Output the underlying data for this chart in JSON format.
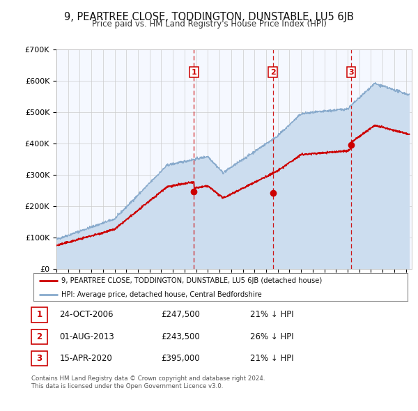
{
  "title": "9, PEARTREE CLOSE, TODDINGTON, DUNSTABLE, LU5 6JB",
  "subtitle": "Price paid vs. HM Land Registry's House Price Index (HPI)",
  "legend_label_red": "9, PEARTREE CLOSE, TODDINGTON, DUNSTABLE, LU5 6JB (detached house)",
  "legend_label_blue": "HPI: Average price, detached house, Central Bedfordshire",
  "footer_line1": "Contains HM Land Registry data © Crown copyright and database right 2024.",
  "footer_line2": "This data is licensed under the Open Government Licence v3.0.",
  "sales": [
    {
      "num": 1,
      "date_str": "24-OCT-2006",
      "date_x": 2006.81,
      "price": 247500,
      "pct": "21%",
      "dir": "↓"
    },
    {
      "num": 2,
      "date_str": "01-AUG-2013",
      "date_x": 2013.58,
      "price": 243500,
      "pct": "26%",
      "dir": "↓"
    },
    {
      "num": 3,
      "date_str": "15-APR-2020",
      "date_x": 2020.29,
      "price": 395000,
      "pct": "21%",
      "dir": "↓"
    }
  ],
  "ylim": [
    0,
    700000
  ],
  "xlim": [
    1995,
    2025.5
  ],
  "yticks": [
    0,
    100000,
    200000,
    300000,
    400000,
    500000,
    600000,
    700000
  ],
  "ytick_labels": [
    "£0",
    "£100K",
    "£200K",
    "£300K",
    "£400K",
    "£500K",
    "£600K",
    "£700K"
  ],
  "red_color": "#cc0000",
  "blue_color": "#88aacc",
  "blue_fill": "#ccddef",
  "grid_color": "#cccccc",
  "bg_color": "#ffffff",
  "plot_bg": "#f5f8ff"
}
